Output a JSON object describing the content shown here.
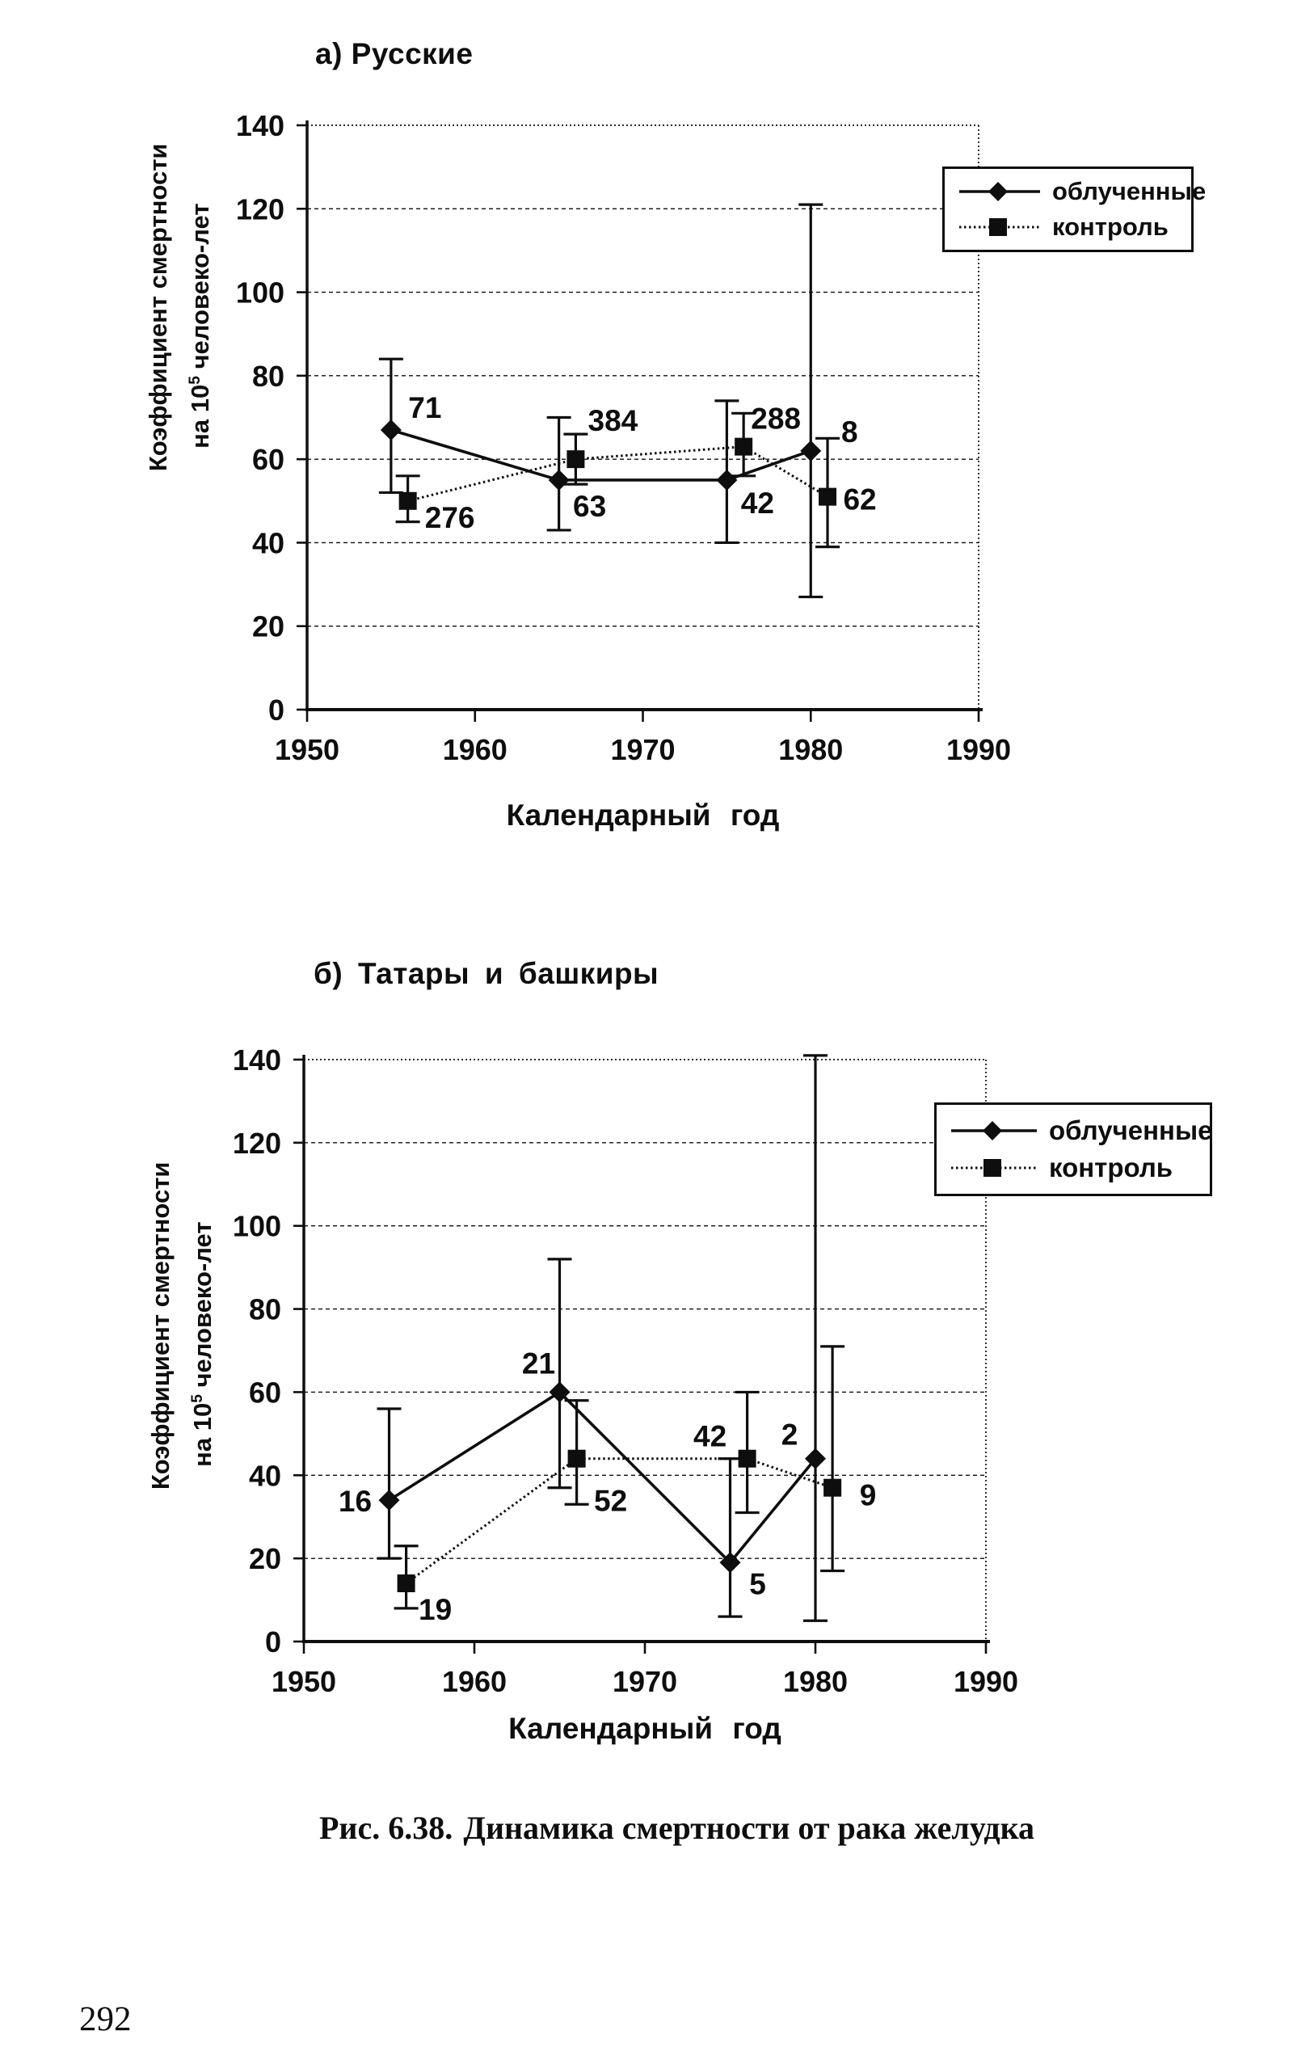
{
  "page": {
    "number": "292"
  },
  "caption": {
    "prefix": "Рис. 6.38.",
    "text": "Динамика смертности от рака желудка"
  },
  "legend": {
    "irradiated": "облученные",
    "control": "контроль"
  },
  "ylabel": {
    "line1": "Коэффициент смертности",
    "line2_pre": "на 10",
    "line2_sup": "5",
    "line2_post": " человеко-лет"
  },
  "chart_data": [
    {
      "id": "a",
      "type": "line",
      "title": "а) Русские",
      "xlabel": "Календарный год",
      "ylabel": "Коэффициент смертности на 10^5 человеко-лет",
      "xlim": [
        1950,
        1990
      ],
      "ylim": [
        0,
        140
      ],
      "xticks": [
        1950,
        1960,
        1970,
        1980,
        1990
      ],
      "yticks": [
        0,
        20,
        40,
        60,
        80,
        100,
        120,
        140
      ],
      "grid": "horizontal",
      "legend_position": "top-right",
      "error_bars": true,
      "series": [
        {
          "name": "облученные",
          "marker": "diamond",
          "line_style": "solid",
          "points": [
            {
              "x": 1955,
              "y": 67,
              "ci_low": 52,
              "ci_high": 84,
              "label": "71",
              "label_dx": 42,
              "label_dy": -28
            },
            {
              "x": 1965,
              "y": 55,
              "ci_low": 43,
              "ci_high": 70,
              "label": "63",
              "label_dx": 38,
              "label_dy": 32
            },
            {
              "x": 1975,
              "y": 55,
              "ci_low": 40,
              "ci_high": 74,
              "label": "42",
              "label_dx": 38,
              "label_dy": 28
            },
            {
              "x": 1980,
              "y": 62,
              "ci_low": 27,
              "ci_high": 121,
              "label": "8",
              "label_dx": 48,
              "label_dy": -24
            }
          ]
        },
        {
          "name": "контроль",
          "marker": "square",
          "line_style": "dotted",
          "points": [
            {
              "x": 1956,
              "y": 50,
              "ci_low": 45,
              "ci_high": 56,
              "label": "276",
              "label_dx": 52,
              "label_dy": 20
            },
            {
              "x": 1966,
              "y": 60,
              "ci_low": 54,
              "ci_high": 66,
              "label": "384",
              "label_dx": 46,
              "label_dy": -48
            },
            {
              "x": 1976,
              "y": 63,
              "ci_low": 56,
              "ci_high": 71,
              "label": "288",
              "label_dx": 40,
              "label_dy": -35
            },
            {
              "x": 1981,
              "y": 51,
              "ci_low": 39,
              "ci_high": 65,
              "label": "62",
              "label_dx": 40,
              "label_dy": 3
            }
          ]
        }
      ]
    },
    {
      "id": "b",
      "type": "line",
      "title": "б) Татары и башкиры",
      "xlabel": "Календарный год",
      "ylabel": "Коэффициент смертности на 10^5 человеко-лет",
      "xlim": [
        1950,
        1990
      ],
      "ylim": [
        0,
        140
      ],
      "xticks": [
        1950,
        1960,
        1970,
        1980,
        1990
      ],
      "yticks": [
        0,
        20,
        40,
        60,
        80,
        100,
        120,
        140
      ],
      "grid": "horizontal",
      "legend_position": "top-right",
      "error_bars": true,
      "series": [
        {
          "name": "облученные",
          "marker": "diamond",
          "line_style": "solid",
          "points": [
            {
              "x": 1955,
              "y": 34,
              "ci_low": 20,
              "ci_high": 56,
              "label": "16",
              "label_dx": -42,
              "label_dy": 1
            },
            {
              "x": 1965,
              "y": 60,
              "ci_low": 37,
              "ci_high": 92,
              "label": "21",
              "label_dx": -26,
              "label_dy": -36
            },
            {
              "x": 1975,
              "y": 19,
              "ci_low": 6,
              "ci_high": 44,
              "label": "5",
              "label_dx": 34,
              "label_dy": 26
            },
            {
              "x": 1980,
              "y": 44,
              "ci_low": 5,
              "ci_high": 141,
              "label": "2",
              "label_dx": -32,
              "label_dy": -30
            }
          ]
        },
        {
          "name": "контроль",
          "marker": "square",
          "line_style": "dotted",
          "points": [
            {
              "x": 1956,
              "y": 14,
              "ci_low": 8,
              "ci_high": 23,
              "label": "19",
              "label_dx": 36,
              "label_dy": 32
            },
            {
              "x": 1966,
              "y": 44,
              "ci_low": 33,
              "ci_high": 58,
              "label": "52",
              "label_dx": 42,
              "label_dy": 52
            },
            {
              "x": 1976,
              "y": 44,
              "ci_low": 31,
              "ci_high": 60,
              "label": "42",
              "label_dx": -46,
              "label_dy": -28
            },
            {
              "x": 1981,
              "y": 37,
              "ci_low": 17,
              "ci_high": 71,
              "label": "9",
              "label_dx": 44,
              "label_dy": 9
            }
          ]
        }
      ]
    }
  ]
}
